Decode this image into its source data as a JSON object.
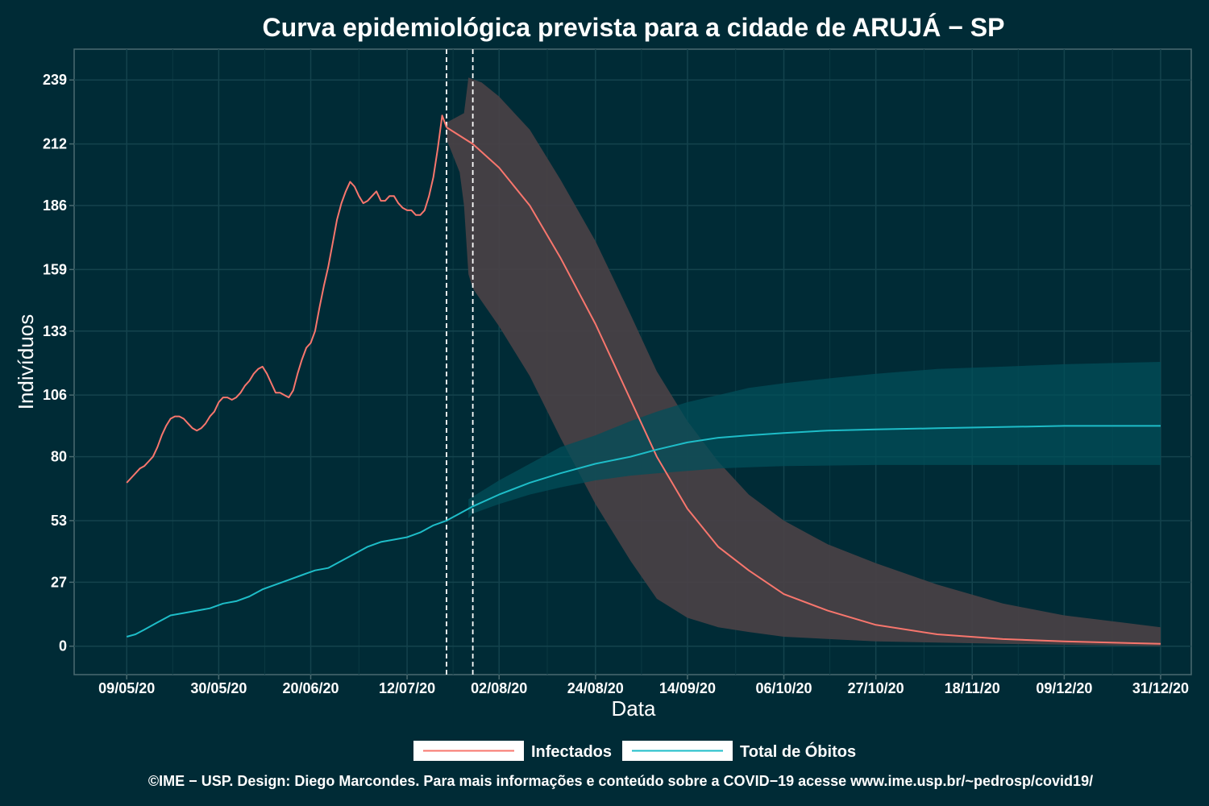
{
  "chart_data": {
    "type": "line",
    "title": "Curva epidemiológica prevista para a cidade de ARUJÁ − SP",
    "xlabel": "Data",
    "ylabel": "Indivíduos",
    "x_ticks": [
      "09/05/20",
      "30/05/20",
      "20/06/20",
      "12/07/20",
      "02/08/20",
      "24/08/20",
      "14/09/20",
      "06/10/20",
      "27/10/20",
      "18/11/20",
      "09/12/20",
      "31/12/20"
    ],
    "y_ticks": [
      "0",
      "27",
      "53",
      "80",
      "106",
      "133",
      "159",
      "186",
      "212",
      "239"
    ],
    "y_tick_values": [
      0,
      27,
      53,
      80,
      106,
      133,
      159,
      186,
      212,
      239
    ],
    "ylim": [
      -12,
      252
    ],
    "xlim": [
      "2020-04-27",
      "2021-01-07"
    ],
    "vlines": [
      "2020-07-21",
      "2020-07-27"
    ],
    "grid": true,
    "legend_position": "bottom",
    "series": [
      {
        "name": "Infectados",
        "color": "#f8766d",
        "band_color": "#4a4146",
        "observed": [
          [
            "2020-05-09",
            69
          ],
          [
            "2020-05-10",
            71
          ],
          [
            "2020-05-11",
            73
          ],
          [
            "2020-05-12",
            75
          ],
          [
            "2020-05-13",
            76
          ],
          [
            "2020-05-14",
            78
          ],
          [
            "2020-05-15",
            80
          ],
          [
            "2020-05-16",
            84
          ],
          [
            "2020-05-17",
            89
          ],
          [
            "2020-05-18",
            93
          ],
          [
            "2020-05-19",
            96
          ],
          [
            "2020-05-20",
            97
          ],
          [
            "2020-05-21",
            97
          ],
          [
            "2020-05-22",
            96
          ],
          [
            "2020-05-23",
            94
          ],
          [
            "2020-05-24",
            92
          ],
          [
            "2020-05-25",
            91
          ],
          [
            "2020-05-26",
            92
          ],
          [
            "2020-05-27",
            94
          ],
          [
            "2020-05-28",
            97
          ],
          [
            "2020-05-29",
            99
          ],
          [
            "2020-05-30",
            103
          ],
          [
            "2020-05-31",
            105
          ],
          [
            "2020-06-01",
            105
          ],
          [
            "2020-06-02",
            104
          ],
          [
            "2020-06-03",
            105
          ],
          [
            "2020-06-04",
            107
          ],
          [
            "2020-06-05",
            110
          ],
          [
            "2020-06-06",
            112
          ],
          [
            "2020-06-07",
            115
          ],
          [
            "2020-06-08",
            117
          ],
          [
            "2020-06-09",
            118
          ],
          [
            "2020-06-10",
            115
          ],
          [
            "2020-06-11",
            111
          ],
          [
            "2020-06-12",
            107
          ],
          [
            "2020-06-13",
            107
          ],
          [
            "2020-06-14",
            106
          ],
          [
            "2020-06-15",
            105
          ],
          [
            "2020-06-16",
            108
          ],
          [
            "2020-06-17",
            115
          ],
          [
            "2020-06-18",
            121
          ],
          [
            "2020-06-19",
            126
          ],
          [
            "2020-06-20",
            128
          ],
          [
            "2020-06-21",
            133
          ],
          [
            "2020-06-22",
            143
          ],
          [
            "2020-06-23",
            152
          ],
          [
            "2020-06-24",
            160
          ],
          [
            "2020-06-25",
            170
          ],
          [
            "2020-06-26",
            180
          ],
          [
            "2020-06-27",
            187
          ],
          [
            "2020-06-28",
            192
          ],
          [
            "2020-06-29",
            196
          ],
          [
            "2020-06-30",
            194
          ],
          [
            "2020-07-01",
            190
          ],
          [
            "2020-07-02",
            187
          ],
          [
            "2020-07-03",
            188
          ],
          [
            "2020-07-04",
            190
          ],
          [
            "2020-07-05",
            192
          ],
          [
            "2020-07-06",
            188
          ],
          [
            "2020-07-07",
            188
          ],
          [
            "2020-07-08",
            190
          ],
          [
            "2020-07-09",
            190
          ],
          [
            "2020-07-10",
            187
          ],
          [
            "2020-07-11",
            185
          ],
          [
            "2020-07-12",
            184
          ],
          [
            "2020-07-13",
            184
          ],
          [
            "2020-07-14",
            182
          ],
          [
            "2020-07-15",
            182
          ],
          [
            "2020-07-16",
            184
          ],
          [
            "2020-07-17",
            190
          ],
          [
            "2020-07-18",
            198
          ],
          [
            "2020-07-19",
            210
          ],
          [
            "2020-07-20",
            224
          ],
          [
            "2020-07-21",
            219
          ]
        ],
        "projected": [
          [
            "2020-07-21",
            219
          ],
          [
            "2020-07-27",
            212
          ],
          [
            "2020-08-02",
            202
          ],
          [
            "2020-08-09",
            186
          ],
          [
            "2020-08-16",
            164
          ],
          [
            "2020-08-24",
            136
          ],
          [
            "2020-09-01",
            104
          ],
          [
            "2020-09-07",
            80
          ],
          [
            "2020-09-14",
            58
          ],
          [
            "2020-09-21",
            42
          ],
          [
            "2020-09-28",
            32
          ],
          [
            "2020-10-06",
            22
          ],
          [
            "2020-10-16",
            15
          ],
          [
            "2020-10-27",
            9
          ],
          [
            "2020-11-10",
            5
          ],
          [
            "2020-11-25",
            3
          ],
          [
            "2020-12-09",
            2
          ],
          [
            "2020-12-31",
            1
          ]
        ],
        "band_upper": [
          [
            "2020-07-21",
            221
          ],
          [
            "2020-07-25",
            225
          ],
          [
            "2020-07-26",
            240
          ],
          [
            "2020-07-29",
            238
          ],
          [
            "2020-08-02",
            232
          ],
          [
            "2020-08-09",
            218
          ],
          [
            "2020-08-16",
            197
          ],
          [
            "2020-08-24",
            171
          ],
          [
            "2020-09-01",
            140
          ],
          [
            "2020-09-07",
            116
          ],
          [
            "2020-09-14",
            95
          ],
          [
            "2020-09-21",
            78
          ],
          [
            "2020-09-28",
            64
          ],
          [
            "2020-10-06",
            53
          ],
          [
            "2020-10-16",
            43
          ],
          [
            "2020-10-27",
            35
          ],
          [
            "2020-11-10",
            26
          ],
          [
            "2020-11-25",
            18
          ],
          [
            "2020-12-09",
            13
          ],
          [
            "2020-12-31",
            8
          ]
        ],
        "band_lower": [
          [
            "2020-07-21",
            214
          ],
          [
            "2020-07-24",
            200
          ],
          [
            "2020-07-25",
            186
          ],
          [
            "2020-07-26",
            157
          ],
          [
            "2020-07-27",
            151
          ],
          [
            "2020-08-02",
            135
          ],
          [
            "2020-08-09",
            114
          ],
          [
            "2020-08-16",
            88
          ],
          [
            "2020-08-24",
            60
          ],
          [
            "2020-09-01",
            36
          ],
          [
            "2020-09-07",
            20
          ],
          [
            "2020-09-14",
            12
          ],
          [
            "2020-09-21",
            8
          ],
          [
            "2020-09-28",
            6
          ],
          [
            "2020-10-06",
            4
          ],
          [
            "2020-10-27",
            2
          ],
          [
            "2020-11-25",
            1
          ],
          [
            "2020-12-31",
            0
          ]
        ]
      },
      {
        "name": "Total de Óbitos",
        "color": "#1ebdc8",
        "band_color": "#024f59",
        "observed": [
          [
            "2020-05-09",
            4
          ],
          [
            "2020-05-11",
            5
          ],
          [
            "2020-05-13",
            7
          ],
          [
            "2020-05-16",
            10
          ],
          [
            "2020-05-19",
            13
          ],
          [
            "2020-05-22",
            14
          ],
          [
            "2020-05-25",
            15
          ],
          [
            "2020-05-28",
            16
          ],
          [
            "2020-05-31",
            18
          ],
          [
            "2020-06-03",
            19
          ],
          [
            "2020-06-06",
            21
          ],
          [
            "2020-06-09",
            24
          ],
          [
            "2020-06-12",
            26
          ],
          [
            "2020-06-15",
            28
          ],
          [
            "2020-06-18",
            30
          ],
          [
            "2020-06-21",
            32
          ],
          [
            "2020-06-24",
            33
          ],
          [
            "2020-06-27",
            36
          ],
          [
            "2020-06-30",
            39
          ],
          [
            "2020-07-03",
            42
          ],
          [
            "2020-07-06",
            44
          ],
          [
            "2020-07-09",
            45
          ],
          [
            "2020-07-12",
            46
          ],
          [
            "2020-07-15",
            48
          ],
          [
            "2020-07-18",
            51
          ],
          [
            "2020-07-21",
            53
          ]
        ],
        "projected": [
          [
            "2020-07-21",
            53
          ],
          [
            "2020-07-24",
            56
          ],
          [
            "2020-07-27",
            59
          ],
          [
            "2020-08-02",
            64
          ],
          [
            "2020-08-09",
            69
          ],
          [
            "2020-08-16",
            73
          ],
          [
            "2020-08-24",
            77
          ],
          [
            "2020-09-01",
            80
          ],
          [
            "2020-09-07",
            83
          ],
          [
            "2020-09-14",
            86
          ],
          [
            "2020-09-21",
            88
          ],
          [
            "2020-09-28",
            89
          ],
          [
            "2020-10-06",
            90
          ],
          [
            "2020-10-16",
            91
          ],
          [
            "2020-10-27",
            91.5
          ],
          [
            "2020-11-10",
            92
          ],
          [
            "2020-11-25",
            92.5
          ],
          [
            "2020-12-09",
            93
          ],
          [
            "2020-12-31",
            93
          ]
        ],
        "band_upper": [
          [
            "2020-07-26",
            62
          ],
          [
            "2020-08-02",
            70
          ],
          [
            "2020-08-09",
            77
          ],
          [
            "2020-08-16",
            84
          ],
          [
            "2020-08-24",
            89
          ],
          [
            "2020-09-01",
            95
          ],
          [
            "2020-09-07",
            99
          ],
          [
            "2020-09-14",
            103
          ],
          [
            "2020-09-21",
            106
          ],
          [
            "2020-09-28",
            109
          ],
          [
            "2020-10-06",
            111
          ],
          [
            "2020-10-16",
            113
          ],
          [
            "2020-10-27",
            115
          ],
          [
            "2020-11-10",
            117
          ],
          [
            "2020-11-25",
            118
          ],
          [
            "2020-12-09",
            119
          ],
          [
            "2020-12-31",
            120
          ]
        ],
        "band_lower": [
          [
            "2020-07-26",
            54
          ],
          [
            "2020-07-27",
            56
          ],
          [
            "2020-08-02",
            60
          ],
          [
            "2020-08-09",
            64
          ],
          [
            "2020-08-16",
            67
          ],
          [
            "2020-08-24",
            70
          ],
          [
            "2020-09-01",
            72
          ],
          [
            "2020-09-07",
            73
          ],
          [
            "2020-09-14",
            74
          ],
          [
            "2020-09-21",
            75
          ],
          [
            "2020-09-28",
            75.5
          ],
          [
            "2020-10-06",
            76
          ],
          [
            "2020-10-27",
            76.5
          ],
          [
            "2020-11-25",
            76.5
          ],
          [
            "2020-12-31",
            76.5
          ]
        ]
      }
    ]
  },
  "legend": {
    "items": [
      {
        "label": "Infectados",
        "color": "#f8766d"
      },
      {
        "label": "Total de Óbitos",
        "color": "#1ebdc8"
      }
    ]
  },
  "caption": "©IME − USP. Design: Diego Marcondes. Para mais informações e conteúdo sobre a COVID−19 acesse www.ime.usp.br/~pedrosp/covid19/"
}
